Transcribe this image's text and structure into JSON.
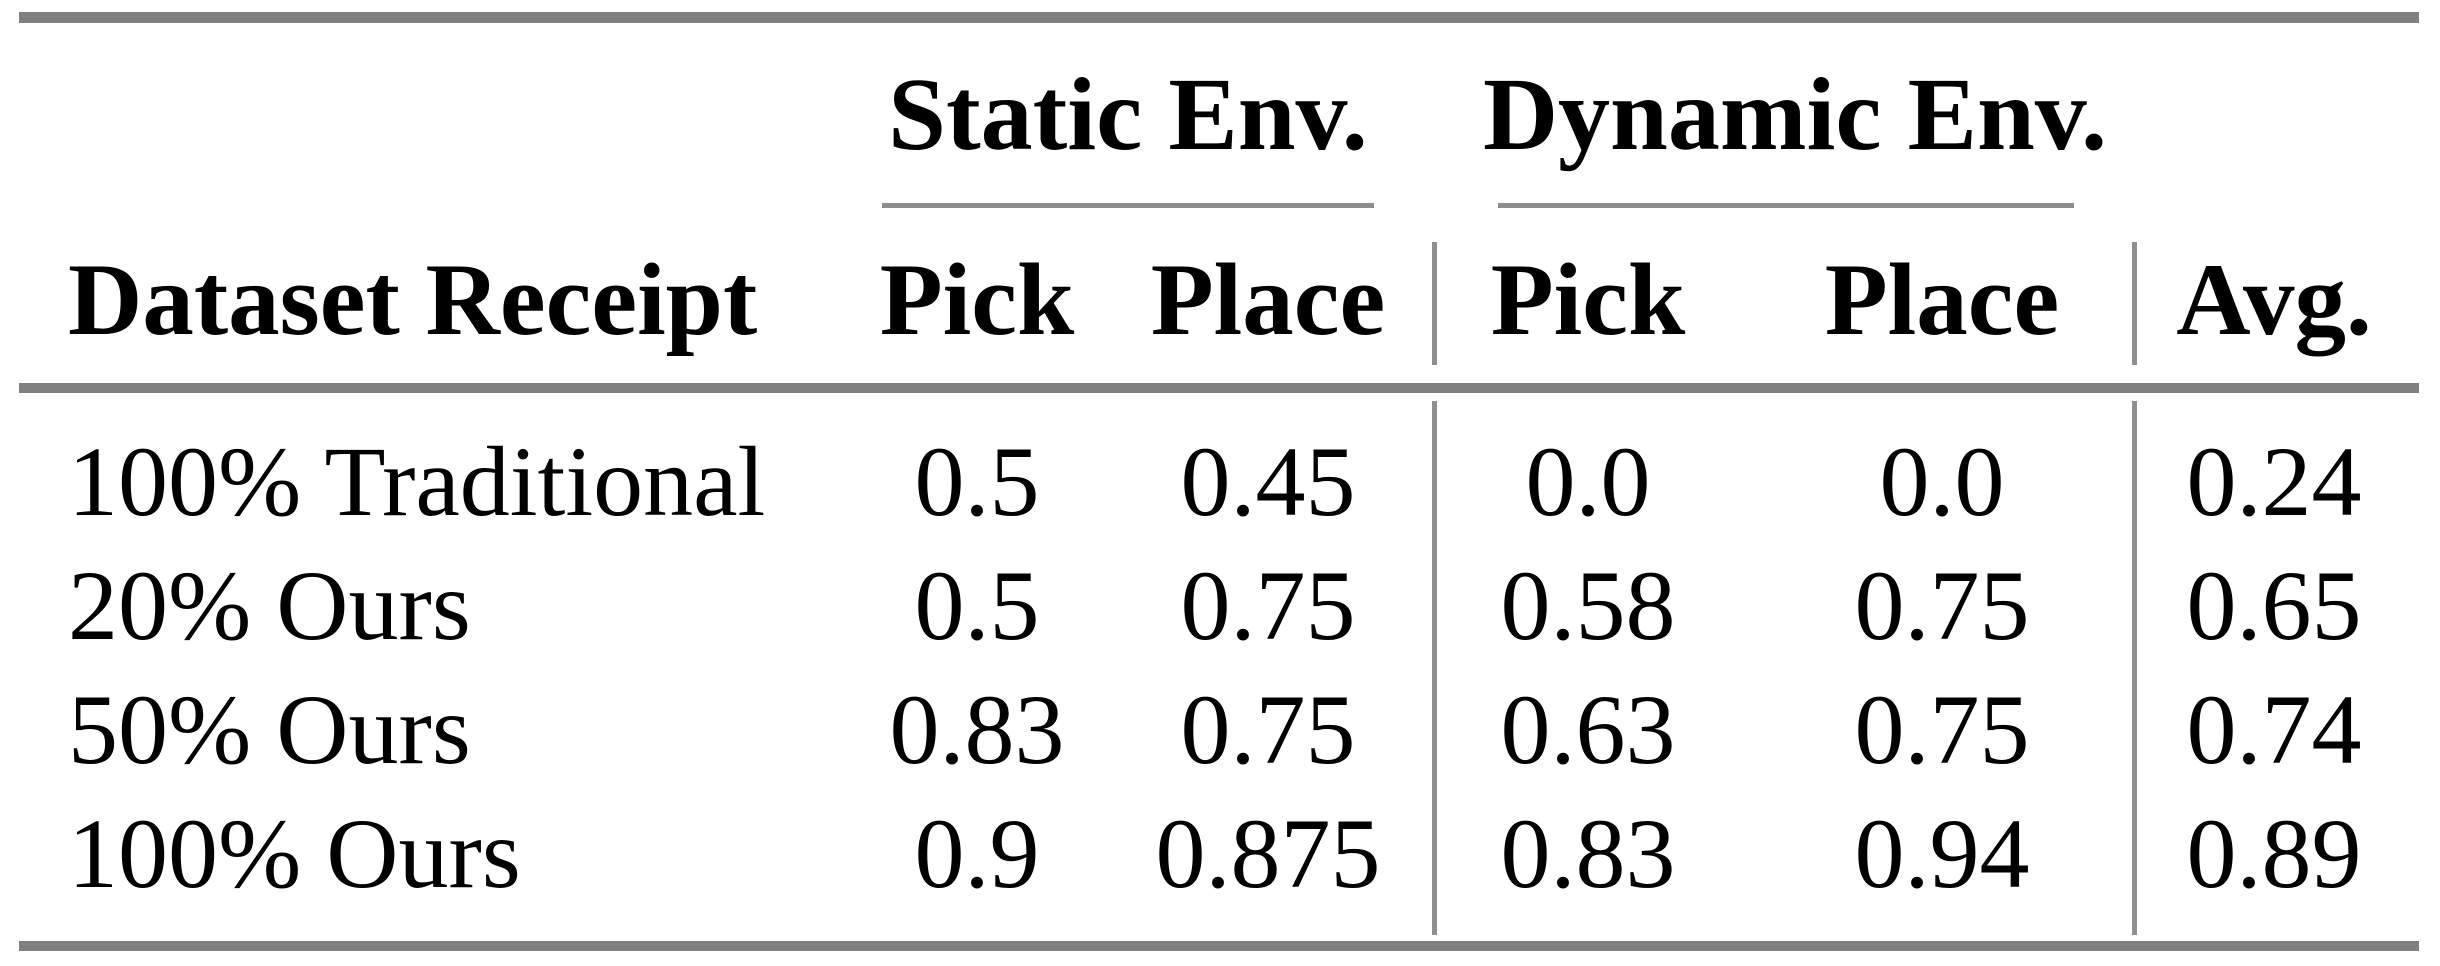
{
  "colors": {
    "background": "#ffffff",
    "text": "#000000",
    "thick_rule": "#808080",
    "thin_rule": "#8c8c8c",
    "vertical_rule": "#8f8f8f"
  },
  "table": {
    "column_groups": [
      {
        "label": "Static Env."
      },
      {
        "label": "Dynamic Env."
      }
    ],
    "headers": {
      "dataset": "Dataset Receipt",
      "static_pick": "Pick",
      "static_place": "Place",
      "dynamic_pick": "Pick",
      "dynamic_place": "Place",
      "avg": "Avg."
    },
    "rows": [
      {
        "label": "100% Traditional",
        "static_pick": "0.5",
        "static_place": "0.45",
        "dynamic_pick": "0.0",
        "dynamic_place": "0.0",
        "avg": "0.24"
      },
      {
        "label": "20% Ours",
        "static_pick": "0.5",
        "static_place": "0.75",
        "dynamic_pick": "0.58",
        "dynamic_place": "0.75",
        "avg": "0.65"
      },
      {
        "label": "50% Ours",
        "static_pick": "0.83",
        "static_place": "0.75",
        "dynamic_pick": "0.63",
        "dynamic_place": "0.75",
        "avg": "0.74"
      },
      {
        "label": "100% Ours",
        "static_pick": "0.9",
        "static_place": "0.875",
        "dynamic_pick": "0.83",
        "dynamic_place": "0.94",
        "avg": "0.89"
      }
    ]
  }
}
